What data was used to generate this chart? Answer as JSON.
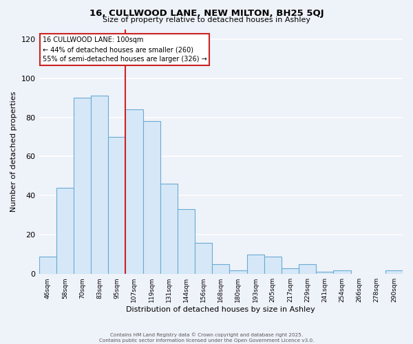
{
  "title": "16, CULLWOOD LANE, NEW MILTON, BH25 5QJ",
  "subtitle": "Size of property relative to detached houses in Ashley",
  "xlabel": "Distribution of detached houses by size in Ashley",
  "ylabel": "Number of detached properties",
  "categories": [
    "46sqm",
    "58sqm",
    "70sqm",
    "83sqm",
    "95sqm",
    "107sqm",
    "119sqm",
    "131sqm",
    "144sqm",
    "156sqm",
    "168sqm",
    "180sqm",
    "193sqm",
    "205sqm",
    "217sqm",
    "229sqm",
    "241sqm",
    "254sqm",
    "266sqm",
    "278sqm",
    "290sqm"
  ],
  "values": [
    9,
    44,
    90,
    91,
    70,
    84,
    78,
    46,
    33,
    16,
    5,
    2,
    10,
    9,
    3,
    5,
    1,
    2,
    0,
    0,
    2
  ],
  "bar_color": "#d6e8f7",
  "bar_edge_color": "#6aaad4",
  "background_color": "#eef2f9",
  "grid_color": "#ffffff",
  "ylim": [
    0,
    125
  ],
  "yticks": [
    0,
    20,
    40,
    60,
    80,
    100,
    120
  ],
  "vline_x_index": 4.5,
  "vline_color": "#cc2222",
  "annotation_title": "16 CULLWOOD LANE: 100sqm",
  "annotation_line1": "← 44% of detached houses are smaller (260)",
  "annotation_line2": "55% of semi-detached houses are larger (326) →",
  "annotation_box_color": "#ffffff",
  "annotation_box_edge": "#cc2222",
  "footer1": "Contains HM Land Registry data © Crown copyright and database right 2025.",
  "footer2": "Contains public sector information licensed under the Open Government Licence v3.0."
}
